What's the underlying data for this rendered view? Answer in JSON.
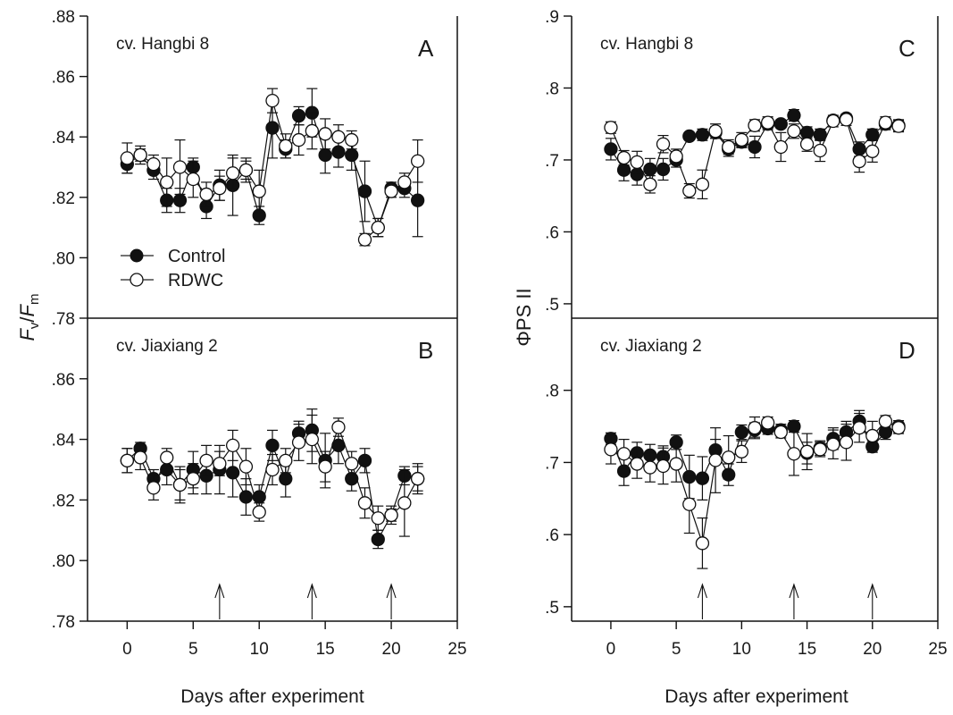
{
  "figure": {
    "legend": [
      {
        "key": "control",
        "label": "Control",
        "marker": "filled"
      },
      {
        "key": "rdwc",
        "label": "RDWC",
        "marker": "open"
      }
    ],
    "xlabel": "Days after experiment",
    "left_ylabel_main": "F",
    "left_ylabel_sub1": "v",
    "left_ylabel_slash": "/",
    "left_ylabel_sub2": "m",
    "right_ylabel": "ΦPS II",
    "arrow_days": [
      7,
      14,
      20
    ]
  },
  "chart_data": [
    {
      "type": "scatter",
      "panel_letter": "A",
      "cultivar": "cv. Hangbi 8",
      "xlim": [
        -3,
        25
      ],
      "ylim": [
        0.78,
        0.88
      ],
      "x_ticks": [
        0,
        5,
        10,
        15,
        20,
        25
      ],
      "y_ticks": [
        ".78",
        ".80",
        ".82",
        ".84",
        ".86",
        ".88"
      ],
      "x": [
        0,
        1,
        2,
        3,
        4,
        5,
        6,
        7,
        8,
        9,
        10,
        11,
        12,
        13,
        14,
        15,
        16,
        17,
        18,
        19,
        20,
        21,
        22
      ],
      "series": [
        {
          "name": "Control",
          "values": [
            0.831,
            0.834,
            0.829,
            0.819,
            0.819,
            0.83,
            0.817,
            0.824,
            0.824,
            0.829,
            0.814,
            0.843,
            0.836,
            0.847,
            0.848,
            0.834,
            0.835,
            0.834,
            0.822,
            0.81,
            0.823,
            0.823,
            0.819
          ],
          "errors": [
            0.003,
            0.002,
            0.003,
            0.004,
            0.004,
            0.003,
            0.004,
            0.005,
            0.01,
            0.003,
            0.003,
            0.01,
            0.003,
            0.003,
            0.008,
            0.006,
            0.005,
            0.005,
            0.01,
            0.003,
            0.002,
            0.003,
            0.012
          ]
        },
        {
          "name": "RDWC",
          "values": [
            0.833,
            0.834,
            0.831,
            0.825,
            0.83,
            0.826,
            0.821,
            0.823,
            0.828,
            0.829,
            0.822,
            0.852,
            0.837,
            0.839,
            0.842,
            0.841,
            0.84,
            0.839,
            0.806,
            0.81,
            0.822,
            0.825,
            0.832
          ],
          "errors": [
            0.005,
            0.003,
            0.003,
            0.008,
            0.009,
            0.006,
            0.004,
            0.004,
            0.005,
            0.004,
            0.007,
            0.004,
            0.004,
            0.005,
            0.006,
            0.005,
            0.004,
            0.003,
            0.002,
            0.003,
            0.002,
            0.003,
            0.007
          ]
        }
      ]
    },
    {
      "type": "scatter",
      "panel_letter": "B",
      "cultivar": "cv. Jiaxiang 2",
      "xlim": [
        -3,
        25
      ],
      "ylim": [
        0.78,
        0.88
      ],
      "x_ticks": [
        0,
        5,
        10,
        15,
        20,
        25
      ],
      "y_ticks": [
        ".78",
        ".80",
        ".82",
        ".84",
        ".86"
      ],
      "x": [
        0,
        1,
        2,
        3,
        4,
        5,
        6,
        7,
        8,
        9,
        10,
        11,
        12,
        13,
        14,
        15,
        16,
        17,
        18,
        19,
        20,
        21,
        22
      ],
      "series": [
        {
          "name": "Control",
          "values": [
            0.833,
            0.837,
            0.827,
            0.83,
            0.825,
            0.83,
            0.828,
            0.83,
            0.829,
            0.821,
            0.821,
            0.838,
            0.827,
            0.842,
            0.843,
            0.833,
            0.838,
            0.827,
            0.833,
            0.807,
            0.815,
            0.828,
            0.827
          ],
          "errors": [
            0.004,
            0.002,
            0.003,
            0.005,
            0.005,
            0.006,
            0.006,
            0.008,
            0.008,
            0.006,
            0.004,
            0.005,
            0.006,
            0.004,
            0.007,
            0.009,
            0.006,
            0.004,
            0.004,
            0.003,
            0.002,
            0.003,
            0.004
          ]
        },
        {
          "name": "RDWC",
          "values": [
            0.833,
            0.834,
            0.824,
            0.834,
            0.825,
            0.827,
            0.833,
            0.832,
            0.838,
            0.831,
            0.816,
            0.83,
            0.833,
            0.839,
            0.84,
            0.831,
            0.844,
            0.832,
            0.819,
            0.814,
            0.815,
            0.819,
            0.827
          ],
          "errors": [
            0.004,
            0.004,
            0.004,
            0.003,
            0.006,
            0.005,
            0.005,
            0.004,
            0.005,
            0.006,
            0.003,
            0.005,
            0.004,
            0.006,
            0.008,
            0.005,
            0.003,
            0.004,
            0.005,
            0.004,
            0.003,
            0.011,
            0.005
          ]
        }
      ]
    },
    {
      "type": "scatter",
      "panel_letter": "C",
      "cultivar": "cv. Hangbi 8",
      "xlim": [
        -3,
        25
      ],
      "ylim": [
        0.48,
        0.9
      ],
      "x_ticks": [
        0,
        5,
        10,
        15,
        20,
        25
      ],
      "y_ticks": [
        ".5",
        ".6",
        ".7",
        ".8",
        ".9"
      ],
      "x": [
        0,
        1,
        2,
        3,
        4,
        5,
        6,
        7,
        8,
        9,
        10,
        11,
        12,
        13,
        14,
        15,
        16,
        17,
        18,
        19,
        20,
        21,
        22
      ],
      "series": [
        {
          "name": "Control",
          "values": [
            0.715,
            0.686,
            0.68,
            0.687,
            0.687,
            0.7,
            0.733,
            0.735,
            0.738,
            0.715,
            0.725,
            0.718,
            0.75,
            0.75,
            0.762,
            0.738,
            0.735,
            0.755,
            0.758,
            0.715,
            0.735,
            0.75,
            0.748
          ],
          "errors": [
            0.015,
            0.015,
            0.015,
            0.015,
            0.015,
            0.01,
            0.005,
            0.008,
            0.008,
            0.01,
            0.008,
            0.015,
            0.008,
            0.005,
            0.008,
            0.008,
            0.008,
            0.005,
            0.005,
            0.01,
            0.008,
            0.008,
            0.008
          ]
        },
        {
          "name": "RDWC",
          "values": [
            0.745,
            0.703,
            0.697,
            0.666,
            0.722,
            0.705,
            0.657,
            0.666,
            0.74,
            0.718,
            0.728,
            0.748,
            0.752,
            0.718,
            0.74,
            0.722,
            0.713,
            0.754,
            0.756,
            0.698,
            0.712,
            0.752,
            0.747
          ],
          "errors": [
            0.008,
            0.01,
            0.015,
            0.012,
            0.012,
            0.01,
            0.01,
            0.02,
            0.01,
            0.01,
            0.01,
            0.008,
            0.008,
            0.02,
            0.01,
            0.01,
            0.015,
            0.008,
            0.008,
            0.015,
            0.015,
            0.008,
            0.008
          ]
        }
      ]
    },
    {
      "type": "scatter",
      "panel_letter": "D",
      "cultivar": "cv. Jiaxiang 2",
      "xlim": [
        -3,
        25
      ],
      "ylim": [
        0.48,
        0.9
      ],
      "x_ticks": [
        0,
        5,
        10,
        15,
        20,
        25
      ],
      "y_ticks": [
        ".5",
        ".6",
        ".7",
        ".8"
      ],
      "x": [
        0,
        1,
        2,
        3,
        4,
        5,
        6,
        7,
        8,
        9,
        10,
        11,
        12,
        13,
        14,
        15,
        16,
        17,
        18,
        19,
        20,
        21,
        22
      ],
      "series": [
        {
          "name": "Control",
          "values": [
            0.733,
            0.688,
            0.713,
            0.71,
            0.708,
            0.728,
            0.68,
            0.678,
            0.717,
            0.683,
            0.742,
            0.745,
            0.747,
            0.745,
            0.75,
            0.713,
            0.72,
            0.733,
            0.742,
            0.757,
            0.722,
            0.742,
            0.75
          ],
          "errors": [
            0.008,
            0.02,
            0.015,
            0.015,
            0.015,
            0.01,
            0.03,
            0.03,
            0.015,
            0.015,
            0.01,
            0.01,
            0.008,
            0.008,
            0.008,
            0.015,
            0.01,
            0.015,
            0.015,
            0.015,
            0.008,
            0.01,
            0.008
          ]
        },
        {
          "name": "RDWC",
          "values": [
            0.718,
            0.712,
            0.698,
            0.693,
            0.695,
            0.698,
            0.642,
            0.588,
            0.703,
            0.707,
            0.715,
            0.748,
            0.755,
            0.742,
            0.712,
            0.715,
            0.718,
            0.725,
            0.728,
            0.748,
            0.737,
            0.757,
            0.748
          ],
          "errors": [
            0.02,
            0.02,
            0.02,
            0.02,
            0.025,
            0.025,
            0.04,
            0.035,
            0.045,
            0.03,
            0.015,
            0.015,
            0.008,
            0.008,
            0.03,
            0.025,
            0.01,
            0.02,
            0.025,
            0.02,
            0.02,
            0.008,
            0.008
          ]
        }
      ]
    }
  ]
}
